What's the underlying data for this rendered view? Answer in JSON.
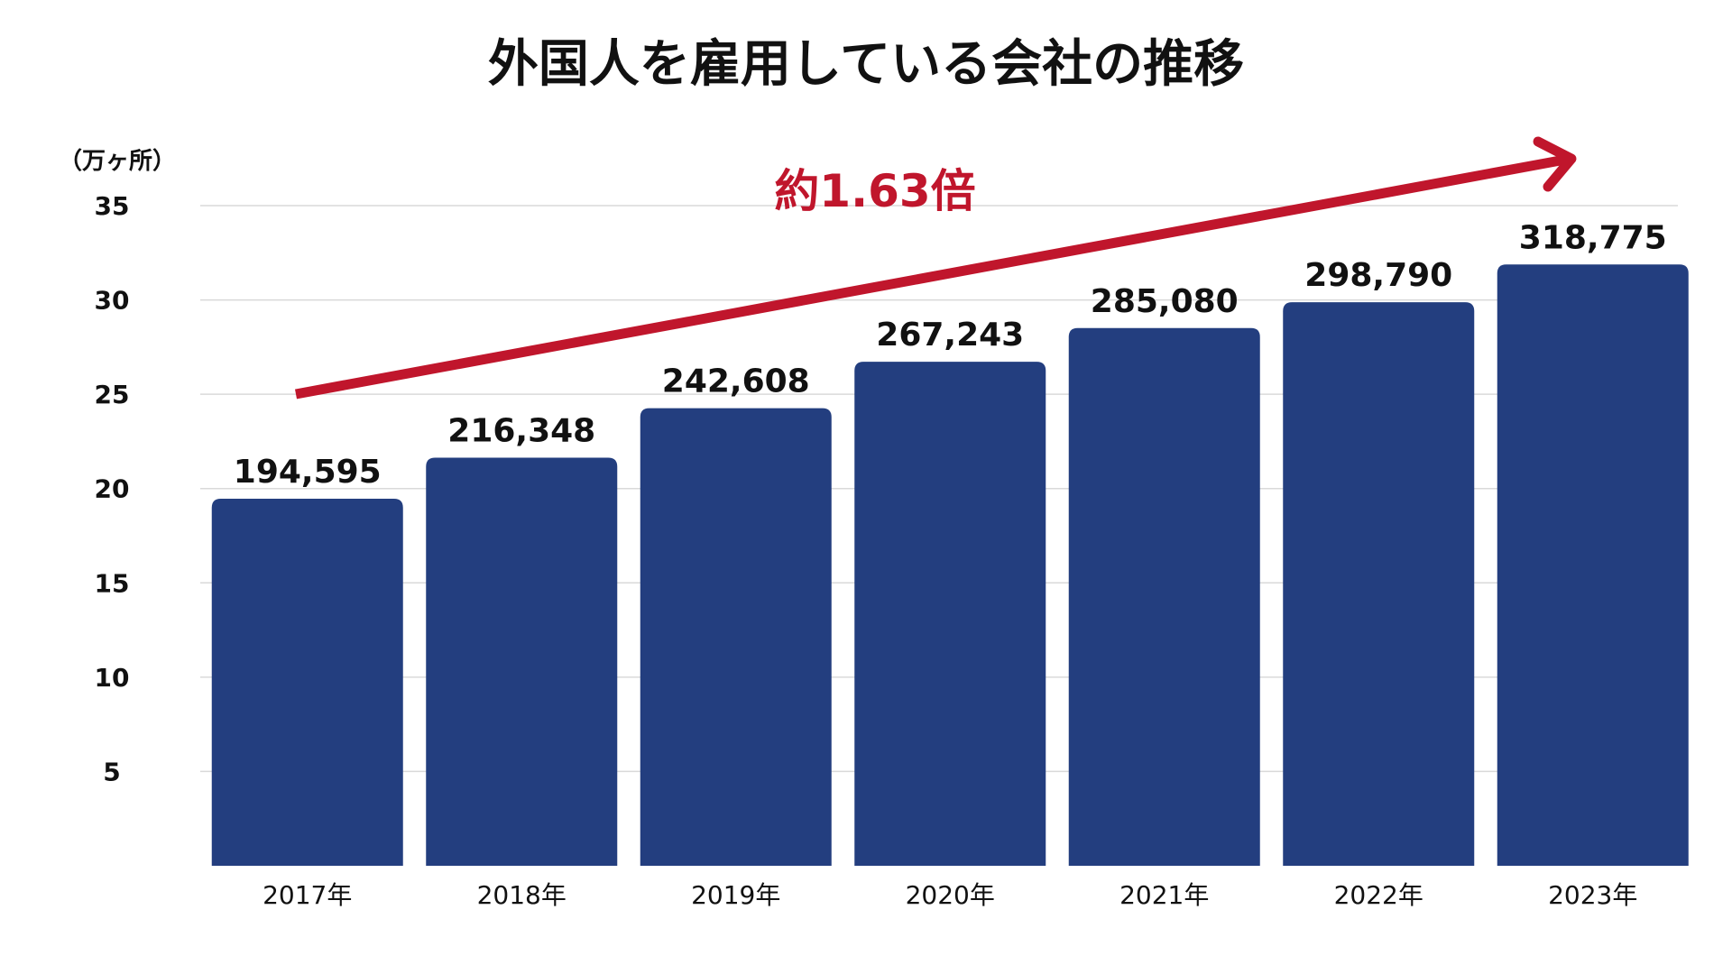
{
  "chart_data": {
    "type": "bar",
    "title": "外国人を雇用している会社の推移",
    "yunit": "（万ヶ所）",
    "categories": [
      "2017年",
      "2018年",
      "2019年",
      "2020年",
      "2021年",
      "2022年",
      "2023年"
    ],
    "values": [
      194595,
      216348,
      242608,
      267243,
      285080,
      298790,
      318775
    ],
    "value_labels": [
      "194,595",
      "216,348",
      "242,608",
      "267,243",
      "285,080",
      "298,790",
      "318,775"
    ],
    "yticks": [
      "35",
      "30",
      "25",
      "20",
      "15",
      "10",
      "5"
    ],
    "ylim": [
      0,
      35
    ],
    "yscale_divisor": 10000,
    "grid": true,
    "annotation": {
      "text": "約1.63倍",
      "color": "#c0162c"
    },
    "colors": {
      "bar": "#233e7f",
      "arrow": "#c0162c",
      "grid": "#d9d9d9",
      "text": "#111111"
    }
  }
}
